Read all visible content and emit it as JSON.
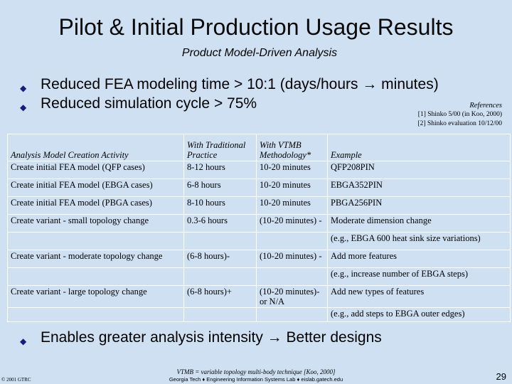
{
  "title": "Pilot & Initial Production Usage Results",
  "subtitle": "Product Model-Driven Analysis",
  "bullets": [
    "Reduced FEA modeling time > 10:1 (days/hours → minutes)",
    "Reduced simulation cycle > 75%",
    "Enables greater analysis intensity → Better designs"
  ],
  "bullet_glyph": "◆",
  "references": {
    "title": "References",
    "items": [
      "[1] Shinko 5/00 (in Koo, 2000)",
      "[2] Shinko evaluation 10/12/00"
    ]
  },
  "table": {
    "headers": [
      "Analysis Model Creation Activity",
      "With Traditional Practice",
      "With VTMB Methodology*",
      "Example"
    ],
    "rows": [
      {
        "activity": "Create initial FEA model (QFP cases)",
        "traditional": "8-12 hours",
        "vtmb": "10-20 minutes",
        "example": "QFP208PIN"
      },
      {
        "activity": "Create initial FEA model (EBGA cases)",
        "traditional": "6-8 hours",
        "vtmb": "10-20 minutes",
        "example": "EBGA352PIN"
      },
      {
        "activity": "Create initial FEA model (PBGA cases)",
        "traditional": "8-10 hours",
        "vtmb": "10-20 minutes",
        "example": "PBGA256PIN"
      },
      {
        "activity": "Create variant - small topology change",
        "traditional": "0.3-6 hours",
        "vtmb": "(10-20 minutes) -",
        "example": "Moderate dimension change",
        "example2": "(e.g., EBGA 600 heat sink size variations)"
      },
      {
        "activity": "Create variant - moderate topology change",
        "traditional": "(6-8 hours)-",
        "vtmb": "(10-20 minutes) -",
        "example": "Add more features",
        "example2": "(e.g., increase number of EBGA steps)"
      },
      {
        "activity": "Create variant - large topology change",
        "traditional": "(6-8 hours)+",
        "vtmb": "(10-20 minutes)-",
        "vtmb2": "or N/A",
        "example": "Add new types of features",
        "example2": "(e.g., add steps to EBGA outer edges)"
      }
    ]
  },
  "footer": {
    "copyright": "© 2001 GTRC",
    "note": "VTMB = variable topology multi-body technique [Koo, 2000]",
    "lab": "Georgia Tech ♦ Engineering Information Systems Lab ♦ eislab.gatech.edu",
    "page": "29"
  },
  "colors": {
    "background": "#cfe0f2",
    "bullet": "#1a1a7a"
  }
}
